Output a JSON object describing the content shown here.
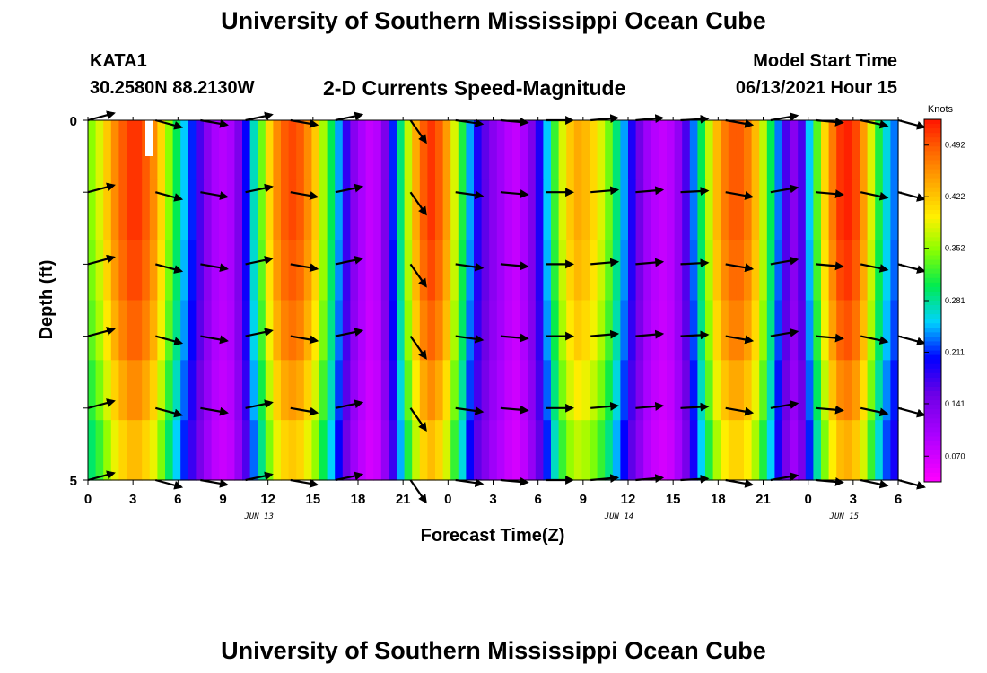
{
  "header": {
    "title": "University of Southern Mississippi Ocean Cube",
    "footer_title": "University of Southern Mississippi Ocean Cube",
    "station": "KATA1",
    "coords": "30.2580N  88.2130W",
    "subtitle": "2-D Currents Speed-Magnitude",
    "model_start_label": "Model Start Time",
    "model_start_value": "06/13/2021 Hour 15"
  },
  "chart_data": {
    "type": "heatmap",
    "title": "2-D Currents Speed-Magnitude",
    "xlabel": "Forecast Time(Z)",
    "ylabel": "Depth (ft)",
    "ylim": [
      0,
      5
    ],
    "y_tick_labels": [
      "0",
      "5"
    ],
    "x_tick_labels": [
      "0",
      "3",
      "6",
      "9",
      "12",
      "15",
      "18",
      "21",
      "0",
      "3",
      "6",
      "9",
      "12",
      "15",
      "18",
      "21",
      "0",
      "3",
      "6"
    ],
    "date_labels": [
      {
        "text": "JUN 13",
        "tick_index": 3.8
      },
      {
        "text": "JUN 14",
        "tick_index": 11.8
      },
      {
        "text": "JUN 15",
        "tick_index": 16.8
      }
    ],
    "colorbar": {
      "unit": "Knots",
      "min": 0.035,
      "max": 0.527,
      "labels": [
        "0.070",
        "0.141",
        "0.211",
        "0.281",
        "0.352",
        "0.422",
        "0.492"
      ]
    },
    "hours_since_start": [
      0,
      1,
      2,
      3,
      4,
      5,
      6,
      7,
      8,
      9,
      10,
      11,
      12,
      13,
      14,
      15,
      16,
      17,
      18,
      19,
      20,
      21,
      22,
      23,
      24,
      25,
      26,
      27,
      28,
      29,
      30,
      31,
      32,
      33,
      34,
      35,
      36,
      37,
      38,
      39,
      40,
      41,
      42,
      43,
      44,
      45,
      46,
      47,
      48,
      49,
      50,
      51,
      52,
      53,
      54
    ],
    "depths_ft": [
      0,
      1,
      2,
      3,
      4,
      5
    ],
    "speed_profile_knots": [
      0.35,
      0.38,
      0.42,
      0.46,
      0.49,
      0.51,
      0.51,
      0.49,
      0.46,
      0.41,
      0.35,
      0.3,
      0.25,
      0.21,
      0.17,
      0.13,
      0.1,
      0.09,
      0.1,
      0.14,
      0.2,
      0.27,
      0.34,
      0.41,
      0.46,
      0.49,
      0.5,
      0.49,
      0.46,
      0.42,
      0.36,
      0.3,
      0.24,
      0.18,
      0.13,
      0.1,
      0.08,
      0.09,
      0.14,
      0.21,
      0.29,
      0.37,
      0.44,
      0.49,
      0.51,
      0.49,
      0.45,
      0.38,
      0.31,
      0.24,
      0.19,
      0.16,
      0.13,
      0.11,
      0.09,
      0.08,
      0.1,
      0.14,
      0.19,
      0.25,
      0.32,
      0.38,
      0.42,
      0.44,
      0.43,
      0.41,
      0.38,
      0.34,
      0.29,
      0.24,
      0.19,
      0.15,
      0.11,
      0.09,
      0.08,
      0.09,
      0.12,
      0.17,
      0.23,
      0.3,
      0.37,
      0.43,
      0.47,
      0.49,
      0.49,
      0.47,
      0.43,
      0.37,
      0.3,
      0.23,
      0.17,
      0.13,
      0.17,
      0.25,
      0.33,
      0.41,
      0.47,
      0.51,
      0.52,
      0.5,
      0.45,
      0.38,
      0.31,
      0.26,
      0.23
    ],
    "depth_speed_factor": [
      1.0,
      1.0,
      0.98,
      0.95,
      0.9,
      0.84
    ],
    "vector_times_hours": [
      0,
      4.5,
      7.5,
      10.5,
      13.5,
      16.5,
      21.5,
      24.5,
      27.5,
      30.5,
      33.5,
      36.5,
      39.5,
      42.5,
      45.5,
      48.5,
      51.5,
      54
    ],
    "vector_directions_deg": [
      -15,
      15,
      10,
      -12,
      10,
      -12,
      55,
      8,
      5,
      0,
      -5,
      -5,
      -3,
      10,
      -10,
      5,
      12,
      15
    ]
  }
}
